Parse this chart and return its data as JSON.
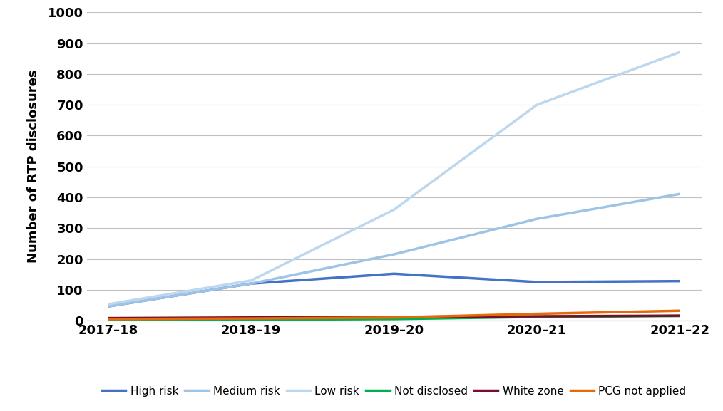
{
  "x_labels": [
    "2017–18",
    "2018–19",
    "2019–20",
    "2020–21",
    "2021–22"
  ],
  "series": {
    "High risk": {
      "values": [
        46,
        120,
        152,
        125,
        128
      ],
      "color": "#4472C4",
      "linewidth": 2.5
    },
    "Medium risk": {
      "values": [
        46,
        120,
        215,
        330,
        411
      ],
      "color": "#9DC3E6",
      "linewidth": 2.5
    },
    "Low risk": {
      "values": [
        53,
        130,
        360,
        700,
        871
      ],
      "color": "#BDD7EE",
      "linewidth": 2.5
    },
    "Not disclosed": {
      "values": [
        2,
        3,
        5,
        12,
        15
      ],
      "color": "#00B050",
      "linewidth": 2.5
    },
    "White zone": {
      "values": [
        8,
        10,
        12,
        14,
        16
      ],
      "color": "#7B0C2E",
      "linewidth": 2.5
    },
    "PCG not applied": {
      "values": [
        5,
        7,
        10,
        22,
        32
      ],
      "color": "#E36C09",
      "linewidth": 2.5
    }
  },
  "ylabel": "Number of RTP disclosures",
  "ylim": [
    0,
    1000
  ],
  "yticks": [
    0,
    100,
    200,
    300,
    400,
    500,
    600,
    700,
    800,
    900,
    1000
  ],
  "background_color": "#ffffff",
  "grid_color": "#c0c0c0",
  "legend_order": [
    "High risk",
    "Medium risk",
    "Low risk",
    "Not disclosed",
    "White zone",
    "PCG not applied"
  ],
  "tick_fontsize": 13,
  "ylabel_fontsize": 13,
  "legend_fontsize": 11
}
